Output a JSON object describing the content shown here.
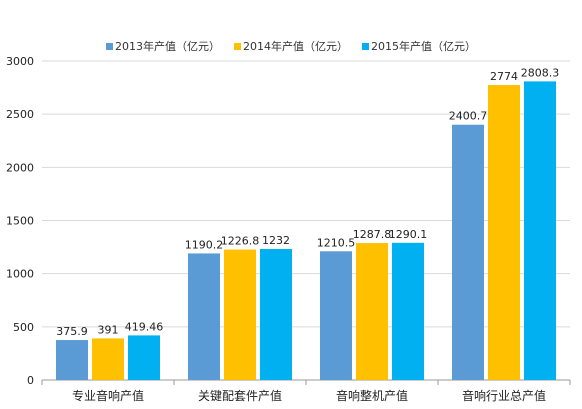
{
  "chart_data": {
    "type": "bar",
    "title": "",
    "xlabel": "",
    "ylabel": "",
    "categories": [
      "专业音响产值",
      "关键配套件产值",
      "音响整机产值",
      "音响行业总产值"
    ],
    "series": [
      {
        "name": "2013年产值（亿元）",
        "color": "#5B9BD5",
        "values": [
          375.9,
          1190.2,
          1210.5,
          2400.7
        ],
        "labels": [
          "375.9",
          "1190.2",
          "1210.5",
          "2400.7"
        ]
      },
      {
        "name": "2014年产值（亿元）",
        "color": "#FFC000",
        "values": [
          391,
          1226.8,
          1287.8,
          2774
        ],
        "labels": [
          "391",
          "1226.8",
          "1287.8",
          "2774"
        ]
      },
      {
        "name": "2015年产值（亿元）",
        "color": "#00B0F0",
        "values": [
          419.46,
          1232,
          1290.1,
          2808.3
        ],
        "labels": [
          "419.46",
          "1232",
          "1290.1",
          "2808.3"
        ]
      }
    ],
    "ylim": [
      0,
      3000
    ],
    "yticks": [
      0,
      500,
      1000,
      1500,
      2000,
      2500,
      3000
    ],
    "grid": true,
    "legend": "top"
  }
}
